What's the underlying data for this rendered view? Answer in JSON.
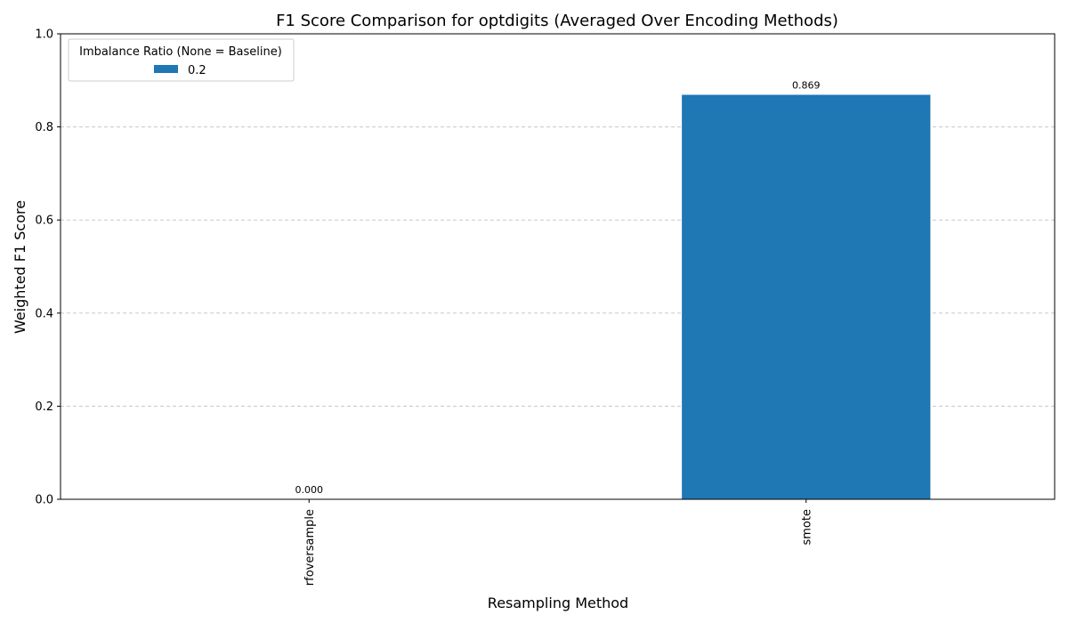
{
  "chart_data": {
    "type": "bar",
    "title": "F1 Score Comparison for optdigits (Averaged Over Encoding Methods)",
    "xlabel": "Resampling Method",
    "ylabel": "Weighted F1 Score",
    "categories": [
      "rfoversample",
      "smote"
    ],
    "series": [
      {
        "name": "0.2",
        "values": [
          0.0,
          0.869
        ],
        "labels": [
          "0.000",
          "0.869"
        ],
        "color": "#1f77b4"
      }
    ],
    "ylim": [
      0,
      1.0
    ],
    "yticks": [
      0.0,
      0.2,
      0.4,
      0.6,
      0.8,
      1.0
    ],
    "ytick_labels": [
      "0.0",
      "0.2",
      "0.4",
      "0.6",
      "0.8",
      "1.0"
    ],
    "legend": {
      "title": "Imbalance Ratio (None = Baseline)",
      "placement": "top-left"
    },
    "grid": {
      "y": true,
      "x": false,
      "style": "dashed",
      "color": "#c8c8c8"
    },
    "xtick_rotation": "vertical"
  }
}
